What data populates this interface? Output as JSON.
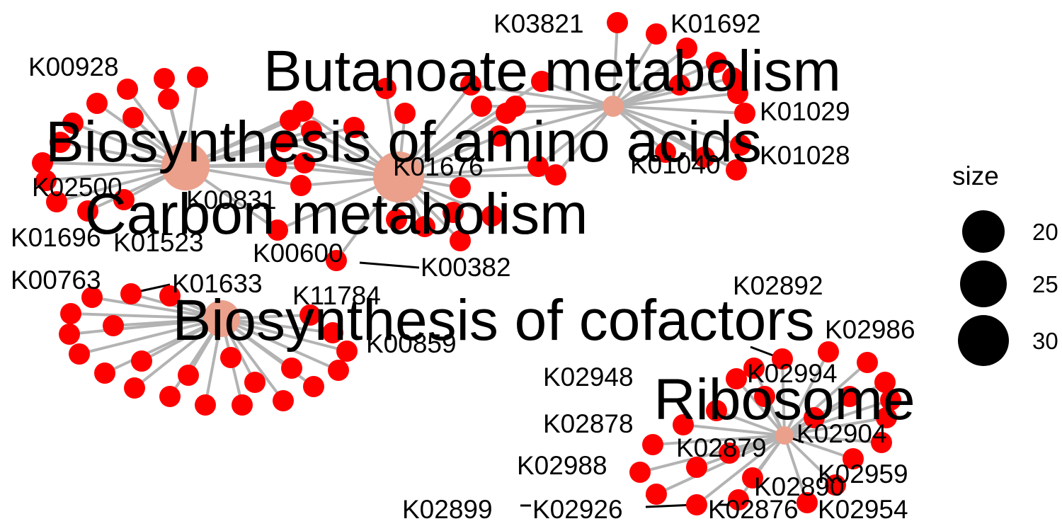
{
  "legend": {
    "title": "size",
    "items": [
      "20",
      "25",
      "30"
    ]
  },
  "colors": {
    "gene_node": "#ff0000",
    "category_node": "#eba08c",
    "edge": "#b3b3b3",
    "label": "#000000"
  },
  "categories": [
    "Butanoate metabolism",
    "Biosynthesis of amino acids",
    "Carbon metabolism",
    "Biosynthesis of cofactors",
    "Ribosome"
  ],
  "gene_labels": [
    "K03821",
    "K01692",
    "K00928",
    "K01029",
    "K01028",
    "K01040",
    "K01676",
    "K02500",
    "K00831",
    "K01696",
    "K01523",
    "K00600",
    "K00382",
    "K00763",
    "K01633",
    "K11784",
    "K00859",
    "K02892",
    "K02986",
    "K02994",
    "K02948",
    "K02878",
    "K02904",
    "K02879",
    "K02988",
    "K02959",
    "K02890",
    "K02899",
    "K02926",
    "K02876",
    "K02954"
  ]
}
